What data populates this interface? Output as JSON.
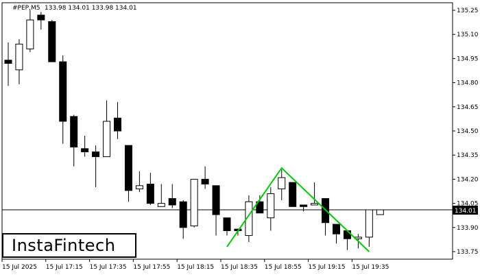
{
  "header": {
    "symbol": "#PEP,M5",
    "ohlc_text": "133.98 134.01 133.98 134.01"
  },
  "brand": {
    "name": "InstaFintech"
  },
  "price_badge": "134.01",
  "colors": {
    "candle_bull_fill": "#ffffff",
    "candle_bear_fill": "#000000",
    "candle_outline": "#000000",
    "pattern_line": "#00cc00",
    "current_price_line": "#000000",
    "price_badge_bg": "#000000",
    "price_badge_text": "#ffffff"
  },
  "chart_data": {
    "type": "candlestick",
    "symbol": "#PEP",
    "timeframe": "M5",
    "y_axis": {
      "min": 133.7,
      "max": 135.33,
      "ticks": [
        "135.25",
        "135.10",
        "134.95",
        "134.80",
        "134.65",
        "134.50",
        "134.35",
        "134.20",
        "134.05",
        "133.90",
        "133.75"
      ]
    },
    "x_axis": {
      "tick_labels": [
        "15 Jul 2025",
        "15 Jul 17:15",
        "15 Jul 17:35",
        "15 Jul 17:55",
        "15 Jul 18:15",
        "15 Jul 18:35",
        "15 Jul 18:55",
        "15 Jul 19:15",
        "15 Jul 19:35"
      ],
      "tick_candle_index": [
        0,
        4,
        8,
        12,
        16,
        20,
        24,
        28,
        32
      ]
    },
    "current_price": 134.01,
    "candles": [
      {
        "o": 134.94,
        "h": 135.05,
        "l": 134.78,
        "c": 134.92
      },
      {
        "o": 134.88,
        "h": 135.07,
        "l": 134.79,
        "c": 135.04
      },
      {
        "o": 135.01,
        "h": 135.25,
        "l": 134.99,
        "c": 135.19
      },
      {
        "o": 135.22,
        "h": 135.24,
        "l": 135.13,
        "c": 135.19
      },
      {
        "o": 135.18,
        "h": 135.19,
        "l": 134.94,
        "c": 134.93
      },
      {
        "o": 134.93,
        "h": 134.97,
        "l": 134.42,
        "c": 134.56
      },
      {
        "o": 134.59,
        "h": 134.6,
        "l": 134.28,
        "c": 134.4
      },
      {
        "o": 134.39,
        "h": 134.47,
        "l": 134.34,
        "c": 134.37
      },
      {
        "o": 134.37,
        "h": 134.41,
        "l": 134.15,
        "c": 134.34
      },
      {
        "o": 134.34,
        "h": 134.69,
        "l": 134.34,
        "c": 134.56
      },
      {
        "o": 134.58,
        "h": 134.68,
        "l": 134.45,
        "c": 134.5
      },
      {
        "o": 134.41,
        "h": 134.41,
        "l": 134.06,
        "c": 134.13
      },
      {
        "o": 134.14,
        "h": 134.25,
        "l": 134.12,
        "c": 134.16
      },
      {
        "o": 134.17,
        "h": 134.24,
        "l": 134.04,
        "c": 134.05
      },
      {
        "o": 134.03,
        "h": 134.17,
        "l": 134.03,
        "c": 134.05
      },
      {
        "o": 134.08,
        "h": 134.17,
        "l": 134.02,
        "c": 134.04
      },
      {
        "o": 134.06,
        "h": 134.07,
        "l": 133.83,
        "c": 133.9
      },
      {
        "o": 133.91,
        "h": 134.2,
        "l": 133.9,
        "c": 134.2
      },
      {
        "o": 134.2,
        "h": 134.28,
        "l": 134.14,
        "c": 134.17
      },
      {
        "o": 134.16,
        "h": 134.16,
        "l": 133.85,
        "c": 133.98
      },
      {
        "o": 133.96,
        "h": 133.96,
        "l": 133.85,
        "c": 133.88
      },
      {
        "o": 133.89,
        "h": 133.89,
        "l": 133.85,
        "c": 133.88
      },
      {
        "o": 133.85,
        "h": 134.1,
        "l": 133.81,
        "c": 134.06
      },
      {
        "o": 134.06,
        "h": 134.1,
        "l": 133.99,
        "c": 133.99
      },
      {
        "o": 133.96,
        "h": 134.15,
        "l": 133.88,
        "c": 134.11
      },
      {
        "o": 134.14,
        "h": 134.26,
        "l": 134.07,
        "c": 134.21
      },
      {
        "o": 134.18,
        "h": 134.18,
        "l": 134.03,
        "c": 134.03
      },
      {
        "o": 134.04,
        "h": 134.04,
        "l": 134.0,
        "c": 134.03
      },
      {
        "o": 134.04,
        "h": 134.18,
        "l": 134.04,
        "c": 134.05
      },
      {
        "o": 134.08,
        "h": 134.08,
        "l": 133.85,
        "c": 133.93
      },
      {
        "o": 133.92,
        "h": 133.92,
        "l": 133.8,
        "c": 133.86
      },
      {
        "o": 133.88,
        "h": 133.88,
        "l": 133.76,
        "c": 133.83
      },
      {
        "o": 133.83,
        "h": 133.86,
        "l": 133.77,
        "c": 133.84
      },
      {
        "o": 133.84,
        "h": 134.01,
        "l": 133.78,
        "c": 134.01
      },
      {
        "o": 133.98,
        "h": 134.01,
        "l": 133.98,
        "c": 134.01
      }
    ],
    "pattern": {
      "type": "double top",
      "points": [
        {
          "candle": 20,
          "price": 133.78
        },
        {
          "candle": 25,
          "price": 134.27
        },
        {
          "candle": 33,
          "price": 133.75
        }
      ]
    }
  }
}
